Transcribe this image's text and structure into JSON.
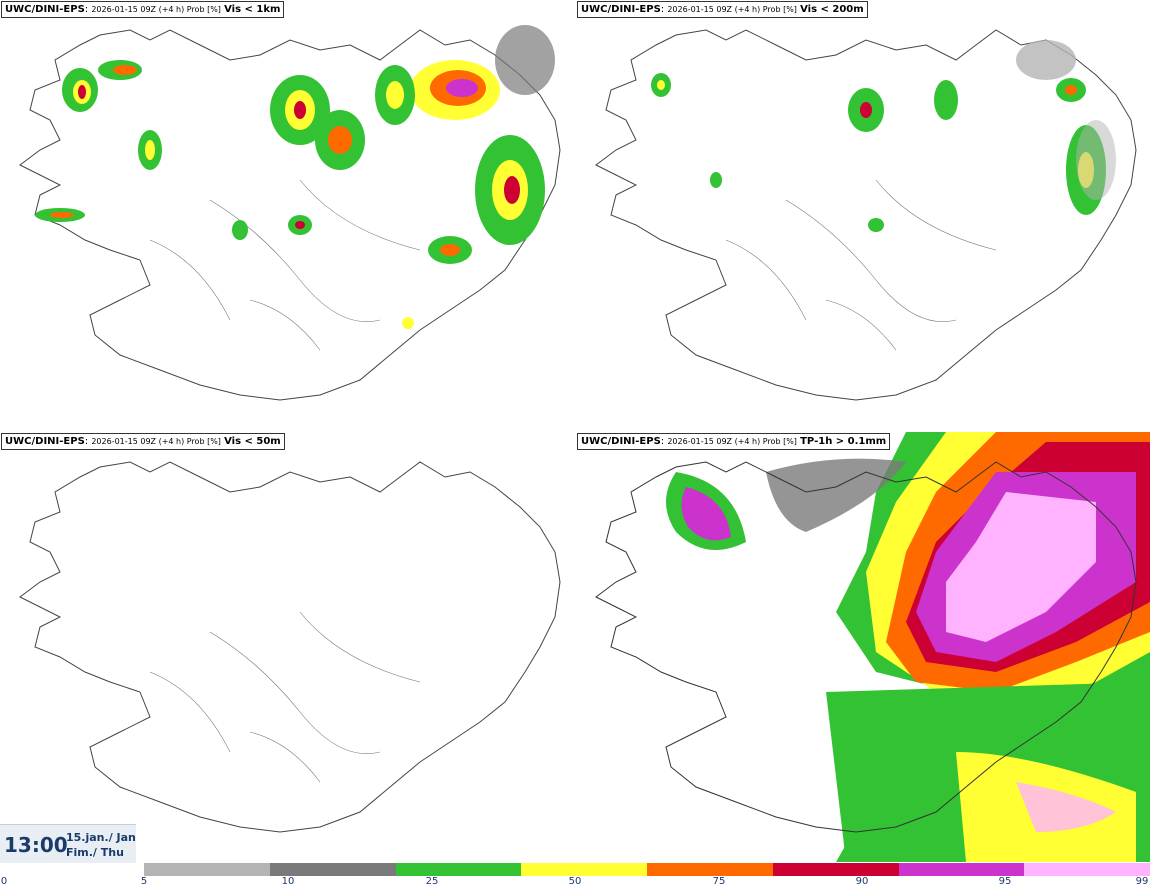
{
  "panels": [
    {
      "model": "UWC/DINI-EPS",
      "meta": "2026-01-15 09Z (+4 h) Prob [%]",
      "var": "Vis < 1km"
    },
    {
      "model": "UWC/DINI-EPS",
      "meta": "2026-01-15 09Z (+4 h) Prob [%]",
      "var": "Vis < 200m"
    },
    {
      "model": "UWC/DINI-EPS",
      "meta": "2026-01-15 09Z (+4 h) Prob [%]",
      "var": "Vis < 50m"
    },
    {
      "model": "UWC/DINI-EPS",
      "meta": "2026-01-15 09Z (+4 h) Prob [%]",
      "var": "TP-1h > 0.1mm"
    }
  ],
  "time": {
    "clock": "13:00",
    "date_line1": "15.jan./ Jan",
    "date_line2": "Fim./ Thu"
  },
  "colorbar": {
    "ticks": [
      "0",
      "5",
      "10",
      "25",
      "50",
      "75",
      "90",
      "95",
      "99"
    ],
    "colors": [
      "#b4b4b4",
      "#7a7a7a",
      "#33c233",
      "#ffff33",
      "#ff6a00",
      "#cc0033",
      "#cc33cc",
      "#ffb3ff"
    ]
  }
}
